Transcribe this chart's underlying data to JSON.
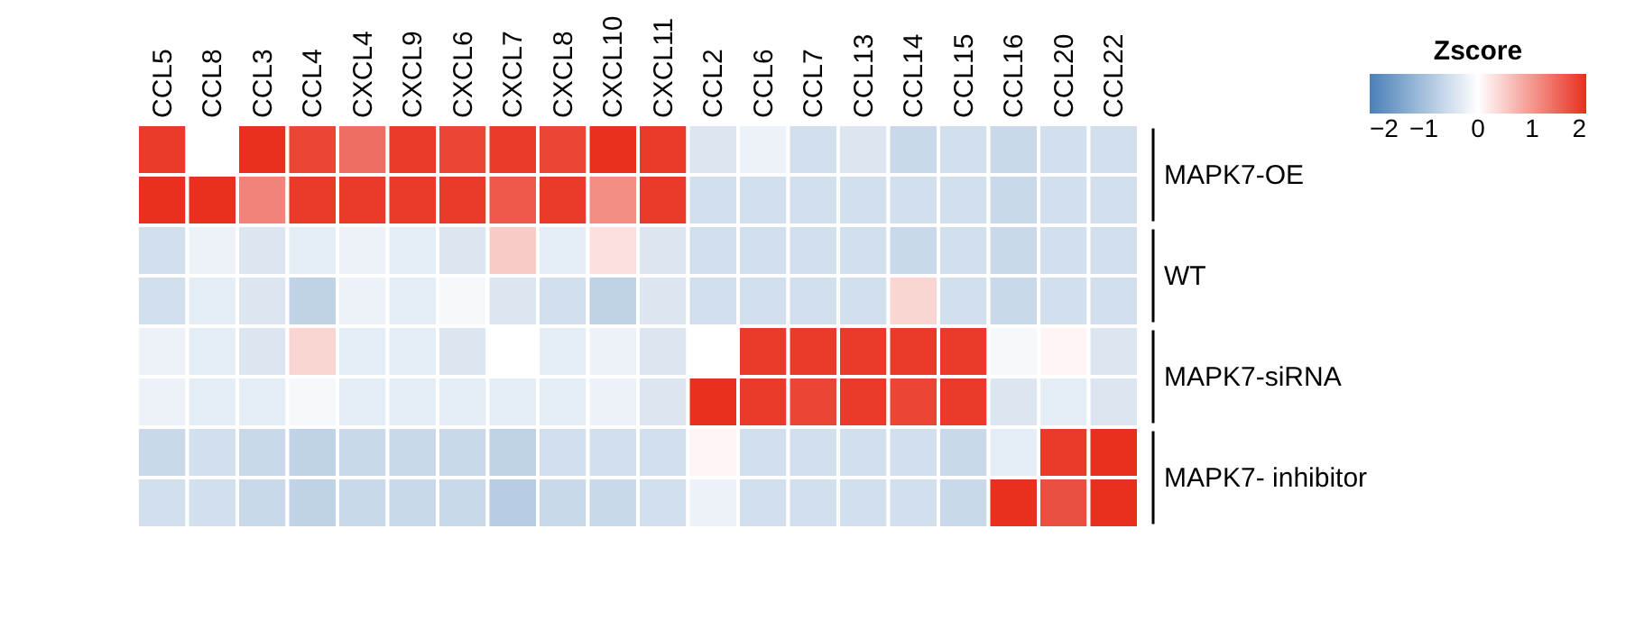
{
  "chart_data": {
    "type": "heatmap",
    "legend_title": "Zscore",
    "categories": [
      "CCL5",
      "CCL8",
      "CCL3",
      "CCL4",
      "CXCL4",
      "CXCL9",
      "CXCL6",
      "CXCL7",
      "CXCL8",
      "CXCL10",
      "CXCL11",
      "CCL2",
      "CCL6",
      "CCL7",
      "CCL13",
      "CCL14",
      "CCL15",
      "CCL16",
      "CCL20",
      "CCL22"
    ],
    "y_categories": [
      null,
      null,
      null,
      null,
      null,
      null,
      null,
      null
    ],
    "annotations": [
      "MAPK7-OE",
      "WT",
      "MAPK7-siRNA",
      "MAPK7- inhibitor"
    ],
    "cells": [
      [
        1.9,
        0,
        2,
        1.8,
        1.4,
        1.9,
        1.8,
        1.9,
        1.8,
        2,
        1.9,
        -0.4,
        -0.2,
        -0.5,
        -0.4,
        -0.6,
        -0.5,
        -0.6,
        -0.5,
        -0.5
      ],
      [
        2,
        2,
        1.2,
        1.9,
        1.9,
        1.9,
        1.9,
        1.6,
        1.9,
        1.1,
        1.9,
        -0.5,
        -0.5,
        -0.5,
        -0.5,
        -0.5,
        -0.5,
        -0.6,
        -0.5,
        -0.5
      ],
      [
        -0.5,
        -0.2,
        -0.4,
        -0.3,
        -0.2,
        -0.3,
        -0.4,
        0.5,
        -0.3,
        0.3,
        -0.4,
        -0.5,
        -0.5,
        -0.5,
        -0.5,
        -0.6,
        -0.5,
        -0.6,
        -0.5,
        -0.5
      ],
      [
        -0.5,
        -0.3,
        -0.4,
        -0.7,
        -0.2,
        -0.3,
        -0.1,
        -0.4,
        -0.5,
        -0.7,
        -0.4,
        -0.5,
        -0.5,
        -0.5,
        -0.5,
        0.4,
        -0.5,
        -0.6,
        -0.5,
        -0.5
      ],
      [
        -0.2,
        -0.3,
        -0.4,
        0.4,
        -0.3,
        -0.3,
        -0.4,
        0,
        -0.3,
        -0.2,
        -0.4,
        0,
        1.9,
        1.9,
        1.9,
        1.9,
        1.9,
        -0.1,
        0.1,
        -0.4
      ],
      [
        -0.2,
        -0.3,
        -0.3,
        -0.1,
        -0.3,
        -0.3,
        -0.3,
        -0.3,
        -0.3,
        -0.2,
        -0.4,
        2,
        1.9,
        1.8,
        1.9,
        1.8,
        1.9,
        -0.4,
        -0.3,
        -0.4
      ],
      [
        -0.6,
        -0.5,
        -0.6,
        -0.7,
        -0.6,
        -0.6,
        -0.6,
        -0.7,
        -0.5,
        -0.5,
        -0.5,
        0.1,
        -0.5,
        -0.5,
        -0.5,
        -0.5,
        -0.6,
        -0.3,
        1.9,
        2
      ],
      [
        -0.5,
        -0.5,
        -0.6,
        -0.7,
        -0.6,
        -0.6,
        -0.6,
        -0.8,
        -0.6,
        -0.6,
        -0.5,
        -0.2,
        -0.5,
        -0.5,
        -0.5,
        -0.5,
        -0.6,
        2,
        1.7,
        2
      ]
    ],
    "clim": [
      -2,
      2
    ],
    "cticks": [
      {
        "value": -2,
        "label": "−2"
      },
      {
        "value": -1,
        "label": "−1"
      },
      0,
      1,
      2
    ]
  }
}
